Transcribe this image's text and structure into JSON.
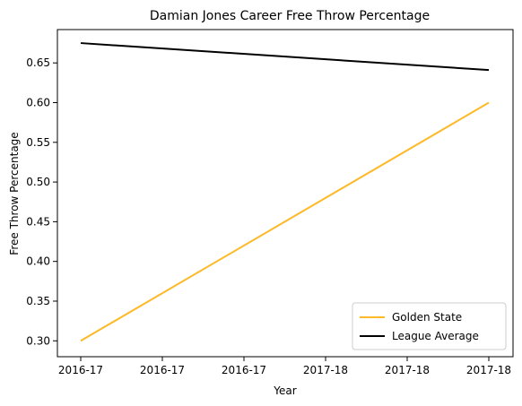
{
  "chart_data": {
    "type": "line",
    "title": "Damian Jones  Career Free Throw Percentage",
    "xlabel": "Year",
    "ylabel": "Free Throw Percentage",
    "x_tick_labels": [
      "2016-17",
      "2016-17",
      "2016-17",
      "2017-18",
      "2017-18",
      "2017-18"
    ],
    "categories": [
      "2016-17",
      "2017-18"
    ],
    "ylim": [
      0.28,
      0.692
    ],
    "y_ticks": [
      0.3,
      0.35,
      0.4,
      0.45,
      0.5,
      0.55,
      0.6,
      0.65
    ],
    "grid": false,
    "legend_position": "lower-right",
    "series": [
      {
        "name": "Golden State",
        "values": [
          0.3,
          0.6
        ],
        "color": "#FDB927"
      },
      {
        "name": "League Average",
        "values": [
          0.675,
          0.641
        ],
        "color": "#000000"
      }
    ]
  }
}
